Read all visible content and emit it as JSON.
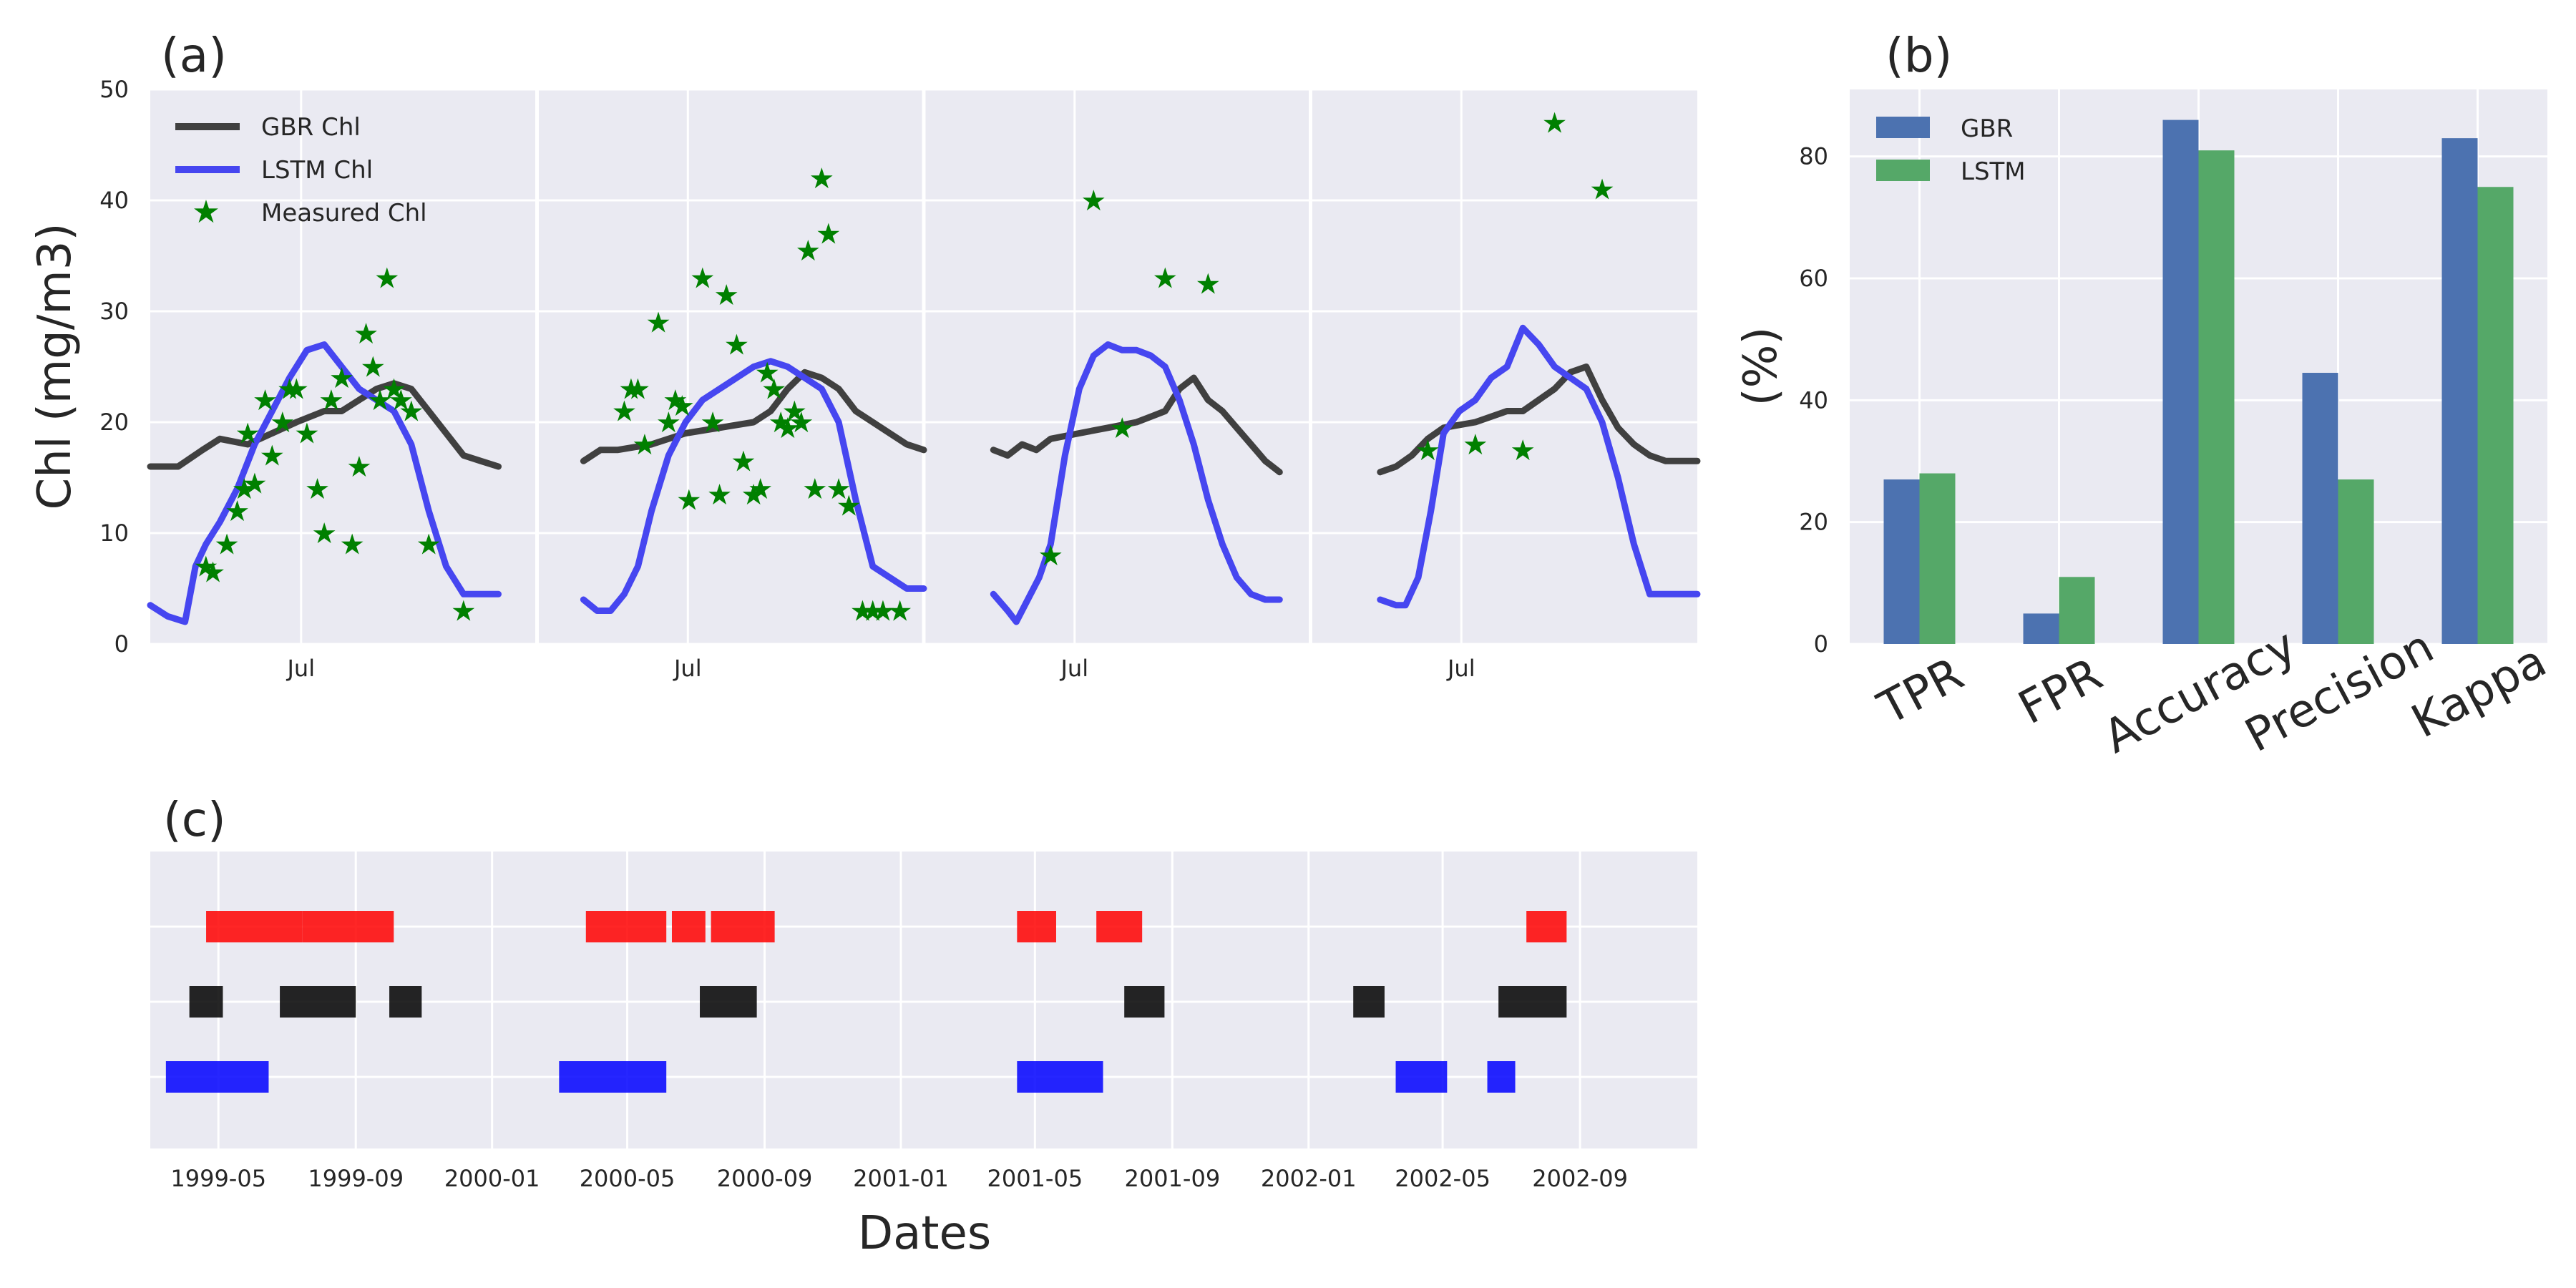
{
  "colors": {
    "panel_bg": "#eaeaf2",
    "grid": "#ffffff",
    "gbr_line": "#404040",
    "lstm_line": "#4646f0",
    "measured": "#008000",
    "bar_gbr": "#4c72b0",
    "bar_lstm": "#55a868",
    "seg_red": "#ff0000",
    "seg_black": "#000000",
    "seg_blue": "#0000ff"
  },
  "panels": {
    "a": {
      "tag": "(a)",
      "ylabel": "Chl (mg/m3)",
      "yticks": [
        "0",
        "10",
        "20",
        "30",
        "40",
        "50"
      ],
      "month_tick_label": "Jul",
      "legend": {
        "gbr": "GBR Chl",
        "lstm": "LSTM Chl",
        "measured": "Measured Chl"
      }
    },
    "b": {
      "tag": "(b)",
      "ylabel": "(%)",
      "yticks": [
        "0",
        "20",
        "40",
        "60",
        "80"
      ],
      "legend": {
        "gbr": "GBR",
        "lstm": "LSTM"
      }
    },
    "c": {
      "tag": "(c)",
      "xlabel": "Dates",
      "xticks": [
        "1999-05",
        "1999-09",
        "2000-01",
        "2000-05",
        "2000-09",
        "2001-01",
        "2001-05",
        "2001-09",
        "2002-01",
        "2002-05",
        "2002-09"
      ]
    }
  },
  "chart_data": [
    {
      "panel": "a",
      "type": "line",
      "ylabel": "Chl (mg/m3)",
      "ylim": [
        0,
        50
      ],
      "grid": true,
      "legend_position": "top-left",
      "subplots": [
        {
          "year_index": 1,
          "gbr": {
            "name": "GBR Chl",
            "x": [
              0,
              0.08,
              0.15,
              0.2,
              0.28,
              0.35,
              0.42,
              0.5,
              0.55,
              0.6,
              0.65,
              0.7,
              0.75,
              0.8,
              0.85,
              0.9,
              0.95,
              1.0
            ],
            "y": [
              16,
              16,
              17.5,
              18.5,
              18,
              19,
              20,
              21,
              21,
              22,
              23,
              23.5,
              23,
              21,
              19,
              17,
              16.5,
              16
            ]
          },
          "lstm": {
            "name": "LSTM Chl",
            "x": [
              0,
              0.05,
              0.1,
              0.13,
              0.16,
              0.2,
              0.25,
              0.3,
              0.35,
              0.4,
              0.45,
              0.5,
              0.55,
              0.6,
              0.65,
              0.7,
              0.75,
              0.8,
              0.85,
              0.9,
              0.95,
              1.0
            ],
            "y": [
              3.5,
              2.5,
              2,
              7,
              9,
              11,
              14,
              18,
              21,
              24,
              26.5,
              27,
              25,
              23,
              22,
              21,
              18,
              12,
              7,
              4.5,
              4.5,
              4.5
            ]
          },
          "measured": {
            "name": "Measured Chl",
            "x": [
              0.16,
              0.18,
              0.22,
              0.25,
              0.27,
              0.28,
              0.3,
              0.33,
              0.35,
              0.38,
              0.4,
              0.42,
              0.45,
              0.48,
              0.5,
              0.52,
              0.55,
              0.58,
              0.6,
              0.62,
              0.64,
              0.66,
              0.68,
              0.7,
              0.72,
              0.75,
              0.8,
              0.9
            ],
            "y": [
              7,
              6.5,
              9,
              12,
              14,
              19,
              14.5,
              22,
              17,
              20,
              23,
              23,
              19,
              14,
              10,
              22,
              24,
              9,
              16,
              28,
              25,
              22,
              33,
              23,
              22,
              21,
              9,
              3
            ]
          }
        },
        {
          "year_index": 2,
          "gbr": {
            "name": "GBR Chl",
            "x": [
              0,
              0.05,
              0.1,
              0.2,
              0.3,
              0.4,
              0.5,
              0.55,
              0.6,
              0.65,
              0.7,
              0.75,
              0.8,
              0.85,
              0.9,
              0.95,
              1.0
            ],
            "y": [
              16.5,
              17.5,
              17.5,
              18,
              19,
              19.5,
              20,
              21,
              23,
              24.5,
              24,
              23,
              21,
              20,
              19,
              18,
              17.5
            ]
          },
          "lstm": {
            "name": "LSTM Chl",
            "x": [
              0,
              0.04,
              0.08,
              0.12,
              0.16,
              0.2,
              0.25,
              0.3,
              0.35,
              0.4,
              0.45,
              0.5,
              0.55,
              0.6,
              0.65,
              0.7,
              0.75,
              0.8,
              0.85,
              0.9,
              0.95,
              1.0
            ],
            "y": [
              4,
              3,
              3,
              4.5,
              7,
              12,
              17,
              20,
              22,
              23,
              24,
              25,
              25.5,
              25,
              24,
              23,
              20,
              13,
              7,
              6,
              5,
              5
            ]
          },
          "measured": {
            "name": "Measured Chl",
            "x": [
              0.12,
              0.14,
              0.16,
              0.18,
              0.22,
              0.25,
              0.27,
              0.29,
              0.31,
              0.35,
              0.38,
              0.4,
              0.42,
              0.45,
              0.47,
              0.5,
              0.52,
              0.54,
              0.56,
              0.58,
              0.6,
              0.62,
              0.64,
              0.66,
              0.68,
              0.7,
              0.72,
              0.75,
              0.78,
              0.82,
              0.85,
              0.88,
              0.93
            ],
            "y": [
              21,
              23,
              23,
              18,
              29,
              20,
              22,
              21.5,
              13,
              33,
              20,
              13.5,
              31.5,
              27,
              16.5,
              13.5,
              14,
              24.5,
              23,
              20,
              19.5,
              21,
              20,
              35.5,
              14,
              42,
              37,
              14,
              12.5,
              3,
              3,
              3,
              3
            ]
          }
        },
        {
          "year_index": 3,
          "gbr": {
            "name": "GBR Chl",
            "x": [
              0,
              0.05,
              0.1,
              0.15,
              0.2,
              0.3,
              0.4,
              0.5,
              0.55,
              0.6,
              0.65,
              0.7,
              0.75,
              0.8,
              0.85,
              0.9,
              0.95,
              1.0
            ],
            "y": [
              17.5,
              17,
              18,
              17.5,
              18.5,
              19,
              19.5,
              20,
              20.5,
              21,
              23,
              24,
              22,
              21,
              19.5,
              18,
              16.5,
              15.5
            ]
          },
          "lstm": {
            "name": "LSTM Chl",
            "x": [
              0,
              0.05,
              0.08,
              0.12,
              0.16,
              0.2,
              0.25,
              0.3,
              0.35,
              0.4,
              0.45,
              0.5,
              0.55,
              0.6,
              0.65,
              0.7,
              0.75,
              0.8,
              0.85,
              0.9,
              0.95,
              1.0
            ],
            "y": [
              4.5,
              3,
              2,
              4,
              6,
              9,
              17,
              23,
              26,
              27,
              26.5,
              26.5,
              26,
              25,
              22,
              18,
              13,
              9,
              6,
              4.5,
              4,
              4
            ]
          },
          "measured": {
            "name": "Measured Chl",
            "x": [
              0.2,
              0.35,
              0.45,
              0.6,
              0.75
            ],
            "y": [
              8,
              40,
              19.5,
              33,
              32.5
            ]
          }
        },
        {
          "year_index": 4,
          "gbr": {
            "name": "GBR Chl",
            "x": [
              0,
              0.05,
              0.1,
              0.15,
              0.2,
              0.3,
              0.4,
              0.45,
              0.5,
              0.55,
              0.6,
              0.65,
              0.7,
              0.75,
              0.8,
              0.85,
              0.9,
              0.95,
              1.0
            ],
            "y": [
              15.5,
              16,
              17,
              18.5,
              19.5,
              20,
              21,
              21,
              22,
              23,
              24.5,
              25,
              22,
              19.5,
              18,
              17,
              16.5,
              16.5,
              16.5
            ]
          },
          "lstm": {
            "name": "LSTM Chl",
            "x": [
              0,
              0.05,
              0.08,
              0.12,
              0.16,
              0.2,
              0.25,
              0.3,
              0.35,
              0.4,
              0.45,
              0.5,
              0.55,
              0.6,
              0.65,
              0.7,
              0.75,
              0.8,
              0.85,
              0.9,
              0.95,
              1.0
            ],
            "y": [
              4,
              3.5,
              3.5,
              6,
              12,
              19,
              21,
              22,
              24,
              25,
              28.5,
              27,
              25,
              24,
              23,
              20,
              15,
              9,
              4.5,
              4.5,
              4.5,
              4.5
            ]
          },
          "measured": {
            "name": "Measured Chl",
            "x": [
              0.15,
              0.3,
              0.45,
              0.55,
              0.7
            ],
            "y": [
              17.5,
              18,
              17.5,
              47,
              41
            ]
          }
        }
      ]
    },
    {
      "panel": "b",
      "type": "bar",
      "ylabel": "(%)",
      "ylim": [
        0,
        91
      ],
      "grid": true,
      "legend_position": "top-left",
      "categories": [
        "TPR",
        "FPR",
        "Accuracy",
        "Precision",
        "Kappa"
      ],
      "series": [
        {
          "name": "GBR",
          "values": [
            27,
            5,
            86,
            44.5,
            83
          ]
        },
        {
          "name": "LSTM",
          "values": [
            28,
            11,
            81,
            27,
            75
          ]
        }
      ]
    },
    {
      "panel": "c",
      "type": "timeline",
      "xlabel": "Dates",
      "grid": true,
      "rows": [
        {
          "color": "red",
          "segments": [
            [
              "1999-04-20",
              "1999-07-15"
            ],
            [
              "1999-07-15",
              "1999-10-05"
            ],
            [
              "2000-03-25",
              "2000-06-05"
            ],
            [
              "2000-06-10",
              "2000-07-10"
            ],
            [
              "2000-07-15",
              "2000-09-10"
            ],
            [
              "2001-04-15",
              "2001-05-20"
            ],
            [
              "2001-06-25",
              "2001-08-05"
            ],
            [
              "2002-07-15",
              "2002-08-20"
            ]
          ]
        },
        {
          "color": "black",
          "segments": [
            [
              "1999-04-05",
              "1999-05-05"
            ],
            [
              "1999-06-25",
              "1999-09-01"
            ],
            [
              "1999-10-01",
              "1999-10-30"
            ],
            [
              "2000-07-05",
              "2000-08-25"
            ],
            [
              "2001-07-20",
              "2001-08-25"
            ],
            [
              "2002-02-10",
              "2002-03-10"
            ],
            [
              "2002-06-20",
              "2002-08-20"
            ]
          ]
        },
        {
          "color": "blue",
          "segments": [
            [
              "1999-03-15",
              "1999-06-15"
            ],
            [
              "2000-03-01",
              "2000-06-05"
            ],
            [
              "2001-04-15",
              "2001-07-01"
            ],
            [
              "2002-03-20",
              "2002-05-05"
            ],
            [
              "2002-06-10",
              "2002-07-05"
            ]
          ]
        }
      ]
    }
  ]
}
